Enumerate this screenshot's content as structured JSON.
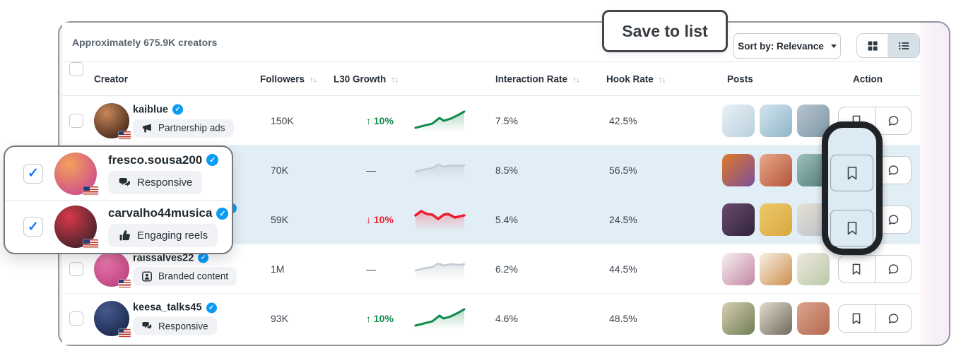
{
  "meta": {
    "results_count": "Approximately 675.9K creators"
  },
  "toolbar": {
    "tooltip_label": "Save to list",
    "sort_label": "Sort by: Relevance",
    "view_selected": "list"
  },
  "sort_arrows": "↑↓",
  "columns": [
    {
      "label": "Creator",
      "sortable": false
    },
    {
      "label": "Followers",
      "sortable": true
    },
    {
      "label": "L30 Growth",
      "sortable": true
    },
    {
      "label": "Interaction Rate",
      "sortable": true
    },
    {
      "label": "Hook Rate",
      "sortable": true
    },
    {
      "label": "Posts",
      "sortable": false
    },
    {
      "label": "Action",
      "sortable": false
    }
  ],
  "rows": [
    {
      "username": "kaiblue",
      "verified": true,
      "tag": "Partnership ads",
      "tag_icon": "megaphone-icon",
      "followers": "150K",
      "growth_text": "↑ 10%",
      "growth_dir": "up",
      "interaction_rate": "7.5%",
      "hook_rate": "42.5%",
      "checked": false,
      "selected": false,
      "avatar_colors": [
        "#c8875a",
        "#4a2c1c"
      ],
      "post_colors": [
        [
          "#e9f1f6",
          "#b9cfdd"
        ],
        [
          "#d3e5ee",
          "#8fb5c9"
        ],
        [
          "#b7c5cf",
          "#7e95a5"
        ]
      ]
    },
    {
      "username": "fresco.sousa200",
      "verified": true,
      "tag": "Responsive",
      "tag_icon": "chat-bubbles-icon",
      "followers": "70K",
      "growth_text": "—",
      "growth_dir": "flat",
      "interaction_rate": "8.5%",
      "hook_rate": "56.5%",
      "checked": true,
      "selected": true,
      "avatar_colors": [
        "#f2a25c",
        "#d14f8a"
      ],
      "post_colors": [
        [
          "#e07a2a",
          "#7a4f9a"
        ],
        [
          "#e8a88a",
          "#b4543c"
        ],
        [
          "#9fc0bb",
          "#4f7a78"
        ]
      ]
    },
    {
      "username": "carvalho44musica",
      "verified": true,
      "tag": "Engaging reels",
      "tag_icon": "thumbs-up-icon",
      "followers": "59K",
      "growth_text": "↓ 10%",
      "growth_dir": "down",
      "interaction_rate": "5.4%",
      "hook_rate": "24.5%",
      "checked": true,
      "selected": true,
      "avatar_colors": [
        "#d8384a",
        "#47242a"
      ],
      "post_colors": [
        [
          "#6b4a70",
          "#2f2438"
        ],
        [
          "#ecc96a",
          "#d9a83f"
        ],
        [
          "#e6e1d6",
          "#b9bfc6"
        ]
      ]
    },
    {
      "username": "raissalves22",
      "verified": true,
      "tag": "Branded content",
      "tag_icon": "person-card-icon",
      "followers": "1M",
      "growth_text": "—",
      "growth_dir": "flat",
      "interaction_rate": "6.2%",
      "hook_rate": "44.5%",
      "checked": false,
      "selected": false,
      "avatar_colors": [
        "#e777ae",
        "#c2447f"
      ],
      "post_colors": [
        [
          "#f7f0f2",
          "#c287a3"
        ],
        [
          "#f6efe4",
          "#cf8f4e"
        ],
        [
          "#efe9df",
          "#b9c9a8"
        ]
      ]
    },
    {
      "username": "keesa_talks45",
      "verified": true,
      "tag": "Responsive",
      "tag_icon": "chat-bubbles-icon",
      "followers": "93K",
      "growth_text": "↑ 10%",
      "growth_dir": "up",
      "interaction_rate": "4.6%",
      "hook_rate": "48.5%",
      "checked": false,
      "selected": false,
      "avatar_colors": [
        "#44598c",
        "#1d2a4f"
      ],
      "post_colors": [
        [
          "#d9cdb4",
          "#6e7e52"
        ],
        [
          "#e3dccd",
          "#6f6a5e"
        ],
        [
          "#dba58e",
          "#b4684f"
        ]
      ]
    }
  ],
  "popup": {
    "rows": [
      {
        "username": "fresco.sousa200",
        "verified": true,
        "tag": "Responsive",
        "tag_icon": "chat-bubbles-icon",
        "checked": true,
        "avatar_colors": [
          "#f2a25c",
          "#d14f8a"
        ]
      },
      {
        "username": "carvalho44musica",
        "verified": true,
        "tag": "Engaging reels",
        "tag_icon": "thumbs-up-icon",
        "checked": true,
        "avatar_colors": [
          "#d8384a",
          "#47242a"
        ]
      }
    ]
  },
  "colors": {
    "growth_up": "#0f8a4b",
    "growth_down": "#ee1b2e",
    "sparkline_flat": "#c3cad1",
    "selected_row_bg": "#e2eef5",
    "verified_blue": "#0a9bf7",
    "checkbox_check_blue": "#1877f2",
    "highlight_border": "#1f2226"
  }
}
